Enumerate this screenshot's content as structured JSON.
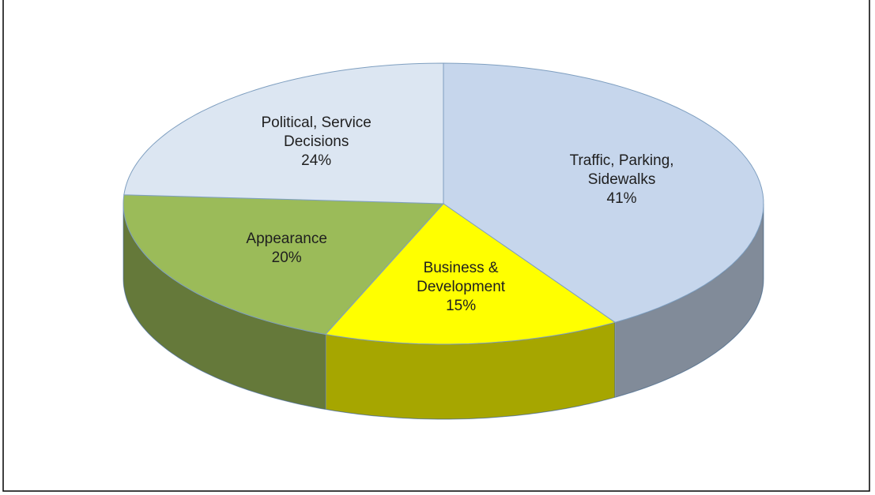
{
  "chart_data": {
    "type": "pie",
    "categories": [
      "Traffic, Parking, Sidewalks",
      "Business & Development",
      "Appearance",
      "Political, Service Decisions"
    ],
    "values": [
      41,
      15,
      20,
      24
    ],
    "value_labels": [
      "41%",
      "15%",
      "20%",
      "24%"
    ],
    "colors": [
      "#c6d6ec",
      "#ffff00",
      "#9bbb59",
      "#dce6f2"
    ]
  }
}
